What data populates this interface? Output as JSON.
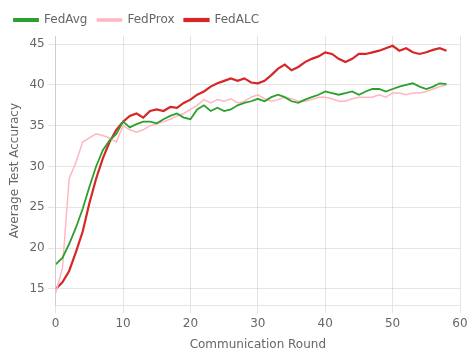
{
  "chart_data": {
    "type": "line",
    "xlabel": "Communication Round",
    "ylabel": "Average Test Accuracy",
    "x": [
      0,
      1,
      2,
      3,
      4,
      5,
      6,
      7,
      8,
      9,
      10,
      11,
      12,
      13,
      14,
      15,
      16,
      17,
      18,
      19,
      20,
      21,
      22,
      23,
      24,
      25,
      26,
      27,
      28,
      29,
      30,
      31,
      32,
      33,
      34,
      35,
      36,
      37,
      38,
      39,
      40,
      41,
      42,
      43,
      44,
      45,
      46,
      47,
      48,
      49,
      50,
      51,
      52,
      53,
      54,
      55,
      56,
      57,
      58
    ],
    "xlim": [
      0,
      60
    ],
    "xticks": [
      0,
      10,
      20,
      30,
      40,
      50,
      60
    ],
    "ylim": [
      13,
      46
    ],
    "yticks": [
      15,
      20,
      25,
      30,
      35,
      40,
      45
    ],
    "grid": true,
    "legend": "upper left",
    "series": [
      {
        "name": "FedAvg",
        "color": "#2ca02c",
        "values": [
          18.0,
          18.8,
          20.5,
          22.5,
          24.8,
          27.5,
          30.0,
          32.0,
          33.2,
          34.0,
          35.5,
          34.8,
          35.2,
          35.5,
          35.5,
          35.3,
          35.8,
          36.2,
          36.5,
          36.0,
          35.8,
          37.0,
          37.5,
          36.8,
          37.2,
          36.8,
          37.0,
          37.5,
          37.8,
          38.0,
          38.3,
          38.0,
          38.5,
          38.8,
          38.5,
          38.0,
          37.8,
          38.2,
          38.5,
          38.8,
          39.2,
          39.0,
          38.8,
          39.0,
          39.2,
          38.8,
          39.2,
          39.5,
          39.5,
          39.2,
          39.5,
          39.8,
          40.0,
          40.2,
          39.8,
          39.5,
          39.8,
          40.2,
          40.1
        ]
      },
      {
        "name": "FedProx",
        "color": "#ffb6c1",
        "values": [
          14.5,
          17.5,
          28.5,
          30.5,
          33.0,
          33.5,
          34.0,
          33.8,
          33.5,
          33.0,
          35.0,
          34.5,
          34.2,
          34.5,
          35.0,
          35.2,
          35.5,
          35.8,
          36.2,
          36.5,
          37.0,
          37.5,
          38.2,
          37.8,
          38.2,
          38.0,
          38.3,
          37.8,
          38.0,
          38.5,
          38.8,
          38.3,
          38.0,
          38.2,
          38.5,
          38.3,
          38.0,
          38.0,
          38.2,
          38.5,
          38.5,
          38.3,
          38.0,
          38.0,
          38.3,
          38.5,
          38.5,
          38.5,
          38.8,
          38.5,
          39.0,
          39.0,
          38.8,
          39.0,
          39.0,
          39.2,
          39.5,
          39.8,
          40.0
        ]
      },
      {
        "name": "FedALC",
        "color": "#d62728",
        "values": [
          15.0,
          15.8,
          17.2,
          19.5,
          22.0,
          25.5,
          28.5,
          31.0,
          33.0,
          34.5,
          35.5,
          36.2,
          36.5,
          36.0,
          36.8,
          37.0,
          36.8,
          37.3,
          37.2,
          37.8,
          38.2,
          38.8,
          39.2,
          39.8,
          40.2,
          40.5,
          40.8,
          40.5,
          40.8,
          40.3,
          40.2,
          40.5,
          41.2,
          42.0,
          42.5,
          41.8,
          42.2,
          42.8,
          43.2,
          43.5,
          44.0,
          43.8,
          43.2,
          42.8,
          43.2,
          43.8,
          43.8,
          44.0,
          44.2,
          44.5,
          44.8,
          44.2,
          44.5,
          44.0,
          43.8,
          44.0,
          44.3,
          44.5,
          44.2
        ]
      }
    ]
  }
}
